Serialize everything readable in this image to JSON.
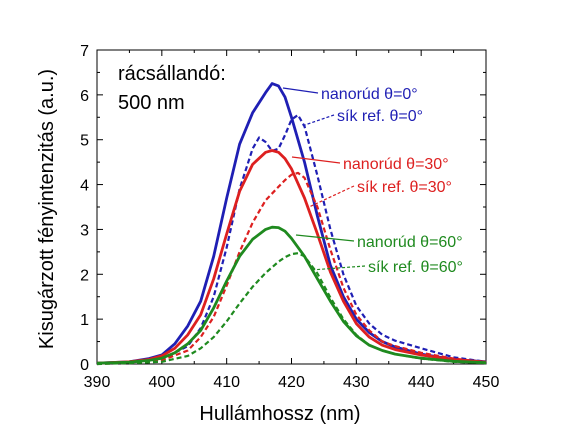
{
  "chart_data": {
    "type": "line",
    "xlabel": "Hullámhossz (nm)",
    "ylabel": "Kisugárzott fényintenzitás (a.u.)",
    "xlim": [
      390,
      450
    ],
    "ylim": [
      0,
      7
    ],
    "xticks": [
      390,
      400,
      410,
      420,
      430,
      440,
      450
    ],
    "yticks": [
      0,
      1,
      2,
      3,
      4,
      5,
      6,
      7
    ],
    "grid": false,
    "annotation": [
      "rácsállandó:",
      "500 nm"
    ],
    "series": [
      {
        "name": "nanorúd θ=0°",
        "color": "#1f1fb4",
        "style": "solid",
        "x": [
          390,
          395,
          398,
          400,
          402,
          404,
          406,
          408,
          410,
          412,
          414,
          416,
          417,
          418,
          419,
          420,
          422,
          424,
          426,
          428,
          430,
          432,
          434,
          436,
          440,
          445,
          450
        ],
        "y": [
          0.02,
          0.05,
          0.12,
          0.2,
          0.45,
          0.85,
          1.4,
          2.4,
          3.7,
          4.9,
          5.6,
          6.05,
          6.25,
          6.2,
          5.95,
          5.5,
          4.5,
          3.3,
          2.2,
          1.5,
          1.0,
          0.7,
          0.5,
          0.38,
          0.22,
          0.1,
          0.05
        ]
      },
      {
        "name": "sík ref. θ=0°",
        "color": "#1f1fb4",
        "style": "dashed",
        "x": [
          390,
          395,
          400,
          404,
          406,
          408,
          410,
          412,
          414,
          415,
          416,
          417,
          418,
          419,
          420,
          421,
          422,
          424,
          426,
          428,
          430,
          432,
          434,
          436,
          440,
          445,
          450
        ],
        "y": [
          0.0,
          0.05,
          0.1,
          0.4,
          0.8,
          1.5,
          2.6,
          3.9,
          4.8,
          5.05,
          4.95,
          4.75,
          4.8,
          5.1,
          5.45,
          5.55,
          5.3,
          4.2,
          3.0,
          2.0,
          1.3,
          0.9,
          0.65,
          0.52,
          0.35,
          0.15,
          0.05
        ]
      },
      {
        "name": "nanorúd θ=30°",
        "color": "#dd2020",
        "style": "solid",
        "x": [
          390,
          395,
          398,
          400,
          402,
          404,
          406,
          408,
          410,
          412,
          414,
          416,
          417,
          418,
          419,
          420,
          422,
          424,
          426,
          428,
          430,
          432,
          434,
          436,
          440,
          445,
          450
        ],
        "y": [
          0.02,
          0.05,
          0.1,
          0.18,
          0.35,
          0.65,
          1.1,
          1.9,
          2.9,
          3.85,
          4.45,
          4.72,
          4.76,
          4.72,
          4.58,
          4.35,
          3.7,
          2.9,
          2.05,
          1.4,
          0.9,
          0.6,
          0.42,
          0.32,
          0.2,
          0.1,
          0.04
        ]
      },
      {
        "name": "sík ref. θ=30°",
        "color": "#dd2020",
        "style": "dashed",
        "x": [
          390,
          395,
          400,
          404,
          406,
          408,
          410,
          412,
          414,
          416,
          418,
          419,
          420,
          421,
          422,
          424,
          426,
          428,
          430,
          432,
          434,
          436,
          440,
          445,
          450
        ],
        "y": [
          0.0,
          0.03,
          0.08,
          0.3,
          0.6,
          1.05,
          1.75,
          2.5,
          3.15,
          3.65,
          3.95,
          4.1,
          4.22,
          4.26,
          4.15,
          3.5,
          2.55,
          1.7,
          1.1,
          0.75,
          0.5,
          0.4,
          0.25,
          0.12,
          0.04
        ]
      },
      {
        "name": "nanorúd θ=60°",
        "color": "#1f8a1f",
        "style": "solid",
        "x": [
          390,
          395,
          398,
          400,
          402,
          404,
          406,
          408,
          410,
          412,
          414,
          416,
          417,
          418,
          419,
          420,
          422,
          424,
          426,
          428,
          430,
          432,
          434,
          436,
          440,
          445,
          450
        ],
        "y": [
          0.02,
          0.04,
          0.08,
          0.13,
          0.25,
          0.45,
          0.75,
          1.25,
          1.85,
          2.4,
          2.78,
          3.0,
          3.05,
          3.04,
          2.96,
          2.8,
          2.4,
          1.9,
          1.4,
          0.95,
          0.63,
          0.42,
          0.3,
          0.22,
          0.13,
          0.06,
          0.03
        ]
      },
      {
        "name": "sík ref. θ=60°",
        "color": "#1f8a1f",
        "style": "dashed",
        "x": [
          390,
          395,
          400,
          404,
          406,
          408,
          410,
          412,
          414,
          416,
          418,
          419,
          420,
          421,
          422,
          424,
          426,
          428,
          430,
          432,
          434,
          436,
          440,
          445,
          450
        ],
        "y": [
          0.0,
          0.02,
          0.05,
          0.18,
          0.35,
          0.6,
          0.95,
          1.35,
          1.72,
          2.03,
          2.28,
          2.38,
          2.45,
          2.47,
          2.4,
          2.02,
          1.48,
          1.0,
          0.65,
          0.42,
          0.3,
          0.22,
          0.12,
          0.05,
          0.02
        ]
      }
    ]
  }
}
